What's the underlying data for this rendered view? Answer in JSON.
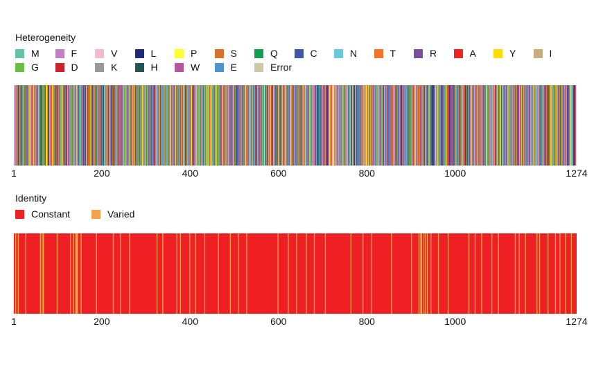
{
  "chart_data": [
    {
      "type": "heatmap",
      "title": "Heterogeneity",
      "x_ticks": [
        1,
        200,
        400,
        600,
        800,
        1000,
        1274
      ],
      "xlim": [
        1,
        1274
      ],
      "legend_placement": "top-left",
      "legend": [
        {
          "label": "M",
          "color": "#66c2a5"
        },
        {
          "label": "F",
          "color": "#c27fc1"
        },
        {
          "label": "V",
          "color": "#f7b6d2"
        },
        {
          "label": "L",
          "color": "#1f2a7a"
        },
        {
          "label": "P",
          "color": "#ffff33"
        },
        {
          "label": "S",
          "color": "#d9702b"
        },
        {
          "label": "Q",
          "color": "#119e4e"
        },
        {
          "label": "C",
          "color": "#3d58a8"
        },
        {
          "label": "N",
          "color": "#6bc7d9"
        },
        {
          "label": "T",
          "color": "#f2742c"
        },
        {
          "label": "R",
          "color": "#7b4fa0"
        },
        {
          "label": "A",
          "color": "#ee2424"
        },
        {
          "label": "Y",
          "color": "#ffdd00"
        },
        {
          "label": "I",
          "color": "#c8ad80"
        },
        {
          "label": "G",
          "color": "#6abd45"
        },
        {
          "label": "D",
          "color": "#c9242b"
        },
        {
          "label": "K",
          "color": "#999999"
        },
        {
          "label": "H",
          "color": "#245555"
        },
        {
          "label": "W",
          "color": "#b8559f"
        },
        {
          "label": "E",
          "color": "#4f93d0"
        },
        {
          "label": "Error",
          "color": "#ccc9a6"
        }
      ]
    },
    {
      "type": "heatmap",
      "title": "Identity",
      "x_ticks": [
        1,
        200,
        400,
        600,
        800,
        1000,
        1274
      ],
      "xlim": [
        1,
        1274
      ],
      "legend_placement": "top-left",
      "legend": [
        {
          "label": "Constant",
          "color": "#ee2024"
        },
        {
          "label": "Varied",
          "color": "#f5a04b"
        }
      ],
      "varied_positions": [
        4,
        10,
        27,
        60,
        64,
        67,
        98,
        128,
        135,
        140,
        142,
        144,
        152,
        187,
        225,
        241,
        262,
        324,
        337,
        369,
        377,
        398,
        411,
        432,
        463,
        490,
        508,
        527,
        598,
        621,
        640,
        662,
        680,
        705,
        763,
        790,
        809,
        855,
        900,
        917,
        921,
        923,
        928,
        932,
        936,
        944,
        961,
        983,
        1030,
        1044,
        1059,
        1082,
        1097,
        1135,
        1144,
        1158,
        1184,
        1190,
        1209,
        1226,
        1236,
        1249,
        1262
      ]
    }
  ]
}
